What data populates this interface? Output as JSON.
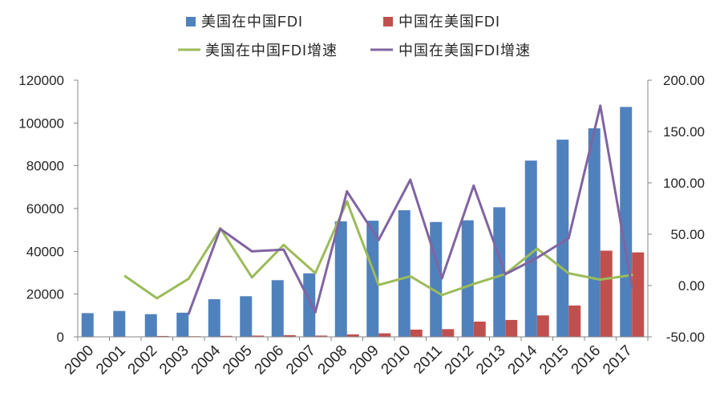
{
  "chart_data": {
    "type": "bar",
    "categories": [
      "2000",
      "2001",
      "2002",
      "2003",
      "2004",
      "2005",
      "2006",
      "2007",
      "2008",
      "2009",
      "2010",
      "2011",
      "2012",
      "2013",
      "2014",
      "2015",
      "2016",
      "2017"
    ],
    "series": [
      {
        "name": "美国在中国FDI",
        "type": "bar",
        "axis": "left",
        "color": "#4F81BD",
        "values": [
          11100,
          12100,
          10600,
          11300,
          17600,
          19000,
          26500,
          29700,
          54000,
          54300,
          59200,
          53700,
          54500,
          60600,
          82400,
          92200,
          97500,
          107500
        ]
      },
      {
        "name": "中国在美国FDI",
        "type": "bar",
        "axis": "left",
        "color": "#C0504D",
        "values": [
          null,
          null,
          400,
          290,
          450,
          600,
          810,
          600,
          1150,
          1660,
          3370,
          3610,
          7120,
          7900,
          10030,
          14650,
          40300,
          39500
        ]
      },
      {
        "name": "美国在中国FDI增速",
        "type": "line",
        "axis": "right",
        "color": "#9BBB59",
        "values": [
          null,
          9.01,
          -12.4,
          6.6,
          55.75,
          7.95,
          39.47,
          12.08,
          81.82,
          0.56,
          9.02,
          -9.29,
          1.49,
          11.19,
          35.97,
          11.89,
          5.75,
          10.26
        ]
      },
      {
        "name": "中国在美国FDI增速",
        "type": "line",
        "axis": "right",
        "color": "#8064A2",
        "values": [
          null,
          null,
          null,
          -27.5,
          55.17,
          33.33,
          35.0,
          -25.93,
          91.67,
          44.35,
          103.01,
          7.12,
          97.23,
          10.96,
          26.96,
          46.06,
          175.09,
          -1.99
        ]
      }
    ],
    "y_left": {
      "min": 0,
      "max": 120000,
      "step": 20000,
      "tick_labels": [
        "0",
        "20000",
        "40000",
        "60000",
        "80000",
        "100000",
        "120000"
      ]
    },
    "y_right": {
      "min": -50,
      "max": 200,
      "step": 50,
      "tick_labels": [
        "-50.00",
        "0.00",
        "50.00",
        "100.00",
        "150.00",
        "200.00"
      ]
    },
    "grid": false,
    "legend": "top"
  }
}
